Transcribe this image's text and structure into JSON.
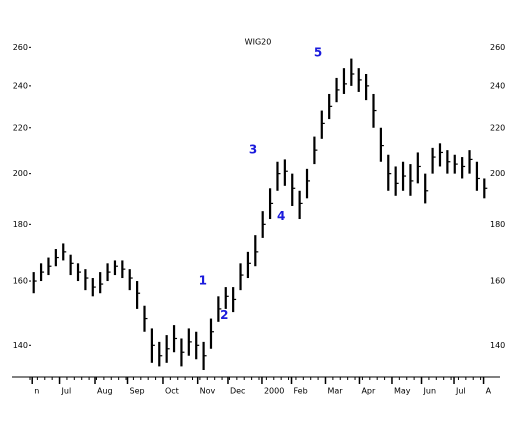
{
  "chart_data": {
    "type": "hlc",
    "title": "WIG20",
    "high": [
      163,
      166,
      168,
      171,
      173,
      169,
      166,
      164,
      161,
      163,
      166,
      167,
      167,
      164,
      160,
      152,
      145,
      141,
      143,
      146,
      142,
      145,
      144,
      141,
      148,
      155,
      158,
      158,
      166,
      170,
      176,
      185,
      194,
      205,
      206,
      200,
      193,
      202,
      216,
      228,
      236,
      244,
      249,
      254,
      249,
      246,
      236,
      220,
      208,
      203,
      205,
      204,
      209,
      200,
      211,
      213,
      210,
      208,
      207,
      210,
      205,
      198
    ],
    "low": [
      156,
      160,
      162,
      165,
      167,
      162,
      160,
      157,
      155,
      156,
      160,
      162,
      161,
      157,
      151,
      144,
      135,
      134,
      135,
      138,
      134,
      137,
      136,
      133,
      139,
      147,
      151,
      150,
      157,
      161,
      165,
      175,
      182,
      193,
      195,
      187,
      182,
      190,
      204,
      215,
      224,
      232,
      236,
      240,
      237,
      233,
      220,
      205,
      193,
      191,
      193,
      191,
      196,
      188,
      200,
      203,
      200,
      200,
      198,
      200,
      193,
      190
    ],
    "close": [
      160,
      163,
      165,
      168,
      170,
      166,
      163,
      161,
      158,
      159,
      163,
      165,
      164,
      161,
      156,
      148,
      140,
      137,
      139,
      142,
      138,
      141,
      140,
      137,
      144,
      151,
      155,
      154,
      162,
      166,
      170,
      180,
      188,
      200,
      201,
      194,
      188,
      197,
      210,
      222,
      230,
      238,
      241,
      246,
      243,
      240,
      228,
      212,
      200,
      196,
      199,
      197,
      203,
      193,
      207,
      209,
      205,
      204,
      203,
      206,
      198,
      194
    ],
    "color": "#000000",
    "xlim": [
      0,
      62
    ],
    "xticks": [
      {
        "value": 0.3,
        "label": "n"
      },
      {
        "value": 4.0,
        "label": "Jul"
      },
      {
        "value": 8.8,
        "label": "Aug"
      },
      {
        "value": 13.2,
        "label": "Sep"
      },
      {
        "value": 18.0,
        "label": "Oct"
      },
      {
        "value": 22.7,
        "label": "Nov"
      },
      {
        "value": 26.8,
        "label": "Dec"
      },
      {
        "value": 31.4,
        "label": "2000"
      },
      {
        "value": 35.4,
        "label": "Feb"
      },
      {
        "value": 40.0,
        "label": "Mar"
      },
      {
        "value": 44.6,
        "label": "Apr"
      },
      {
        "value": 49.0,
        "label": "May"
      },
      {
        "value": 53.0,
        "label": "Jun"
      },
      {
        "value": 57.4,
        "label": "Jul"
      },
      {
        "value": 61.4,
        "label": "A"
      }
    ],
    "ylim": [
      133,
      264
    ],
    "log_y": true,
    "yticks": [
      140,
      160,
      180,
      200,
      220,
      240,
      260
    ],
    "annotations": [
      {
        "text": "1",
        "x": 23.4,
        "y": 160
      },
      {
        "text": "2",
        "x": 26.3,
        "y": 149
      },
      {
        "text": "3",
        "x": 30.2,
        "y": 210
      },
      {
        "text": "4",
        "x": 34.0,
        "y": 183
      },
      {
        "text": "5",
        "x": 39.0,
        "y": 257
      }
    ],
    "annotation_color": "#1a1adc"
  }
}
